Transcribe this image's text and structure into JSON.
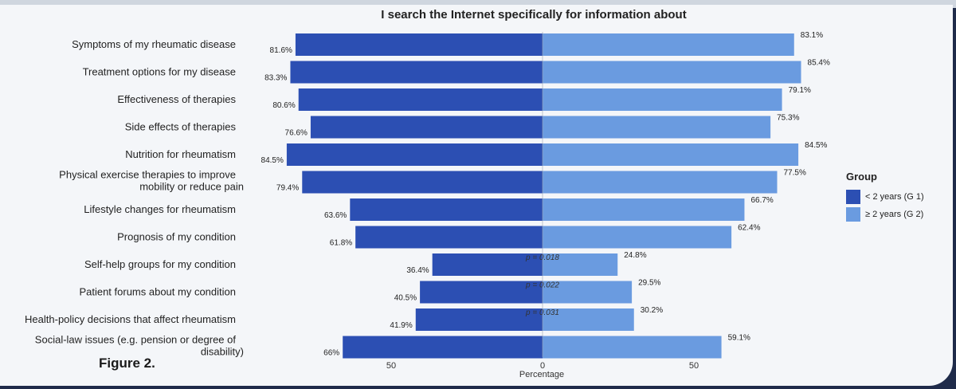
{
  "figure_label": "Figure 2.",
  "colors": {
    "g1": "#2c4fb3",
    "g2": "#6a9be0"
  },
  "chart_data": {
    "type": "bar",
    "orientation": "horizontal-diverging",
    "title": "I search the Internet specifically for information about",
    "xlabel": "Percentage",
    "xticks": [
      50,
      0,
      50
    ],
    "categories": [
      "Symptoms of my rheumatic disease",
      "Treatment options for my disease",
      "Effectiveness of therapies",
      "Side effects of therapies",
      "Nutrition for rheumatism",
      "Physical exercise therapies to improve mobility or reduce pain",
      "Lifestyle changes for rheumatism",
      "Prognosis of my condition",
      "Self-help groups for my condition",
      "Patient forums about my condition",
      "Health-policy decisions that affect rheumatism",
      "Social-law issues (e.g. pension or degree of disability)"
    ],
    "category_lines": [
      [
        "Symptoms of my rheumatic disease"
      ],
      [
        "Treatment options for my disease"
      ],
      [
        "Effectiveness of therapies"
      ],
      [
        "Side effects of therapies"
      ],
      [
        "Nutrition for rheumatism"
      ],
      [
        "Physical exercise therapies to improve",
        "mobility or reduce pain"
      ],
      [
        "Lifestyle changes for rheumatism"
      ],
      [
        "Prognosis of my condition"
      ],
      [
        "Self-help groups for my condition"
      ],
      [
        "Patient forums about my condition"
      ],
      [
        "Health-policy decisions that affect rheumatism"
      ],
      [
        "Social-law issues (e.g. pension or degree of",
        "disability)"
      ]
    ],
    "series": [
      {
        "name": "< 2 years (G 1)",
        "values": [
          81.6,
          83.3,
          80.6,
          76.6,
          84.5,
          79.4,
          63.6,
          61.8,
          36.4,
          40.5,
          41.9,
          66
        ],
        "labels": [
          "81.6%",
          "83.3%",
          "80.6%",
          "76.6%",
          "84.5%",
          "79.4%",
          "63.6%",
          "61.8%",
          "36.4%",
          "40.5%",
          "41.9%",
          "66%"
        ]
      },
      {
        "name": "≥ 2 years (G 2)",
        "values": [
          83.1,
          85.4,
          79.1,
          75.3,
          84.5,
          77.5,
          66.7,
          62.4,
          24.8,
          29.5,
          30.2,
          59.1
        ],
        "labels": [
          "83.1%",
          "85.4%",
          "79.1%",
          "75.3%",
          "84.5%",
          "77.5%",
          "66.7%",
          "62.4%",
          "24.8%",
          "29.5%",
          "30.2%",
          "59.1%"
        ]
      }
    ],
    "p_values": [
      "",
      "",
      "",
      "",
      "",
      "",
      "",
      "",
      "p = 0.018",
      "p = 0.022",
      "p = 0.031",
      ""
    ],
    "legend": {
      "title": "Group",
      "placement": "right"
    }
  }
}
